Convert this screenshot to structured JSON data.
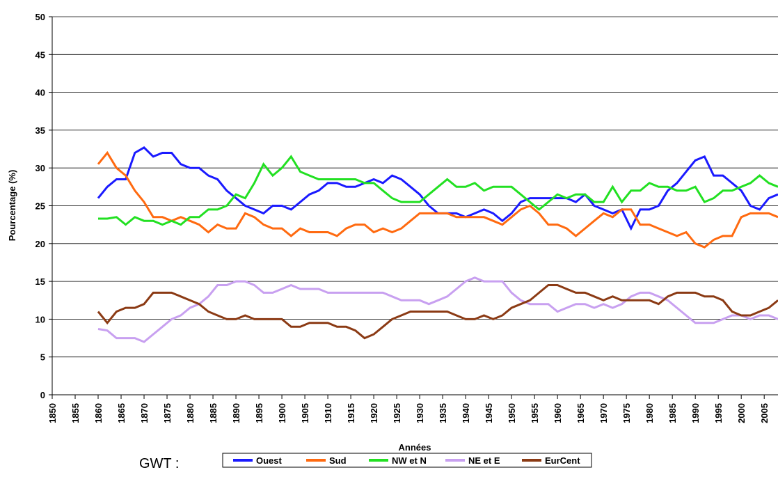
{
  "chart_data": {
    "type": "line",
    "x_label": "Années",
    "y_label": "Pourcentage (%)",
    "legend_title": "GWT :",
    "x": [
      1860,
      1862,
      1864,
      1866,
      1868,
      1870,
      1872,
      1874,
      1876,
      1878,
      1880,
      1882,
      1884,
      1886,
      1888,
      1890,
      1892,
      1894,
      1896,
      1898,
      1900,
      1902,
      1904,
      1906,
      1908,
      1910,
      1912,
      1914,
      1916,
      1918,
      1920,
      1922,
      1924,
      1926,
      1928,
      1930,
      1932,
      1934,
      1936,
      1938,
      1940,
      1942,
      1944,
      1946,
      1948,
      1950,
      1952,
      1954,
      1956,
      1958,
      1960,
      1962,
      1964,
      1966,
      1968,
      1970,
      1972,
      1974,
      1976,
      1978,
      1980,
      1982,
      1984,
      1986,
      1988,
      1990,
      1992,
      1994,
      1996,
      1998,
      2000,
      2002,
      2004,
      2006,
      2008
    ],
    "series": [
      {
        "name": "Ouest",
        "color": "#1a1aff",
        "values": [
          26,
          27.5,
          28.5,
          28.5,
          32,
          32.7,
          31.5,
          32,
          32,
          30.5,
          30,
          30,
          29,
          28.5,
          27,
          26,
          25,
          24.5,
          24,
          25,
          25,
          24.5,
          25.5,
          26.5,
          27,
          28,
          28,
          27.5,
          27.5,
          28,
          28.5,
          28,
          29,
          28.5,
          27.5,
          26.5,
          25,
          24,
          24,
          24,
          23.5,
          24,
          24.5,
          24,
          23,
          24,
          25.5,
          26,
          26,
          26,
          26,
          26,
          25.5,
          26.5,
          25,
          24.5,
          24,
          24.5,
          22,
          24.5,
          24.5,
          25,
          27,
          28,
          29.5,
          31,
          31.5,
          29,
          29,
          28,
          27,
          25,
          24.5,
          26,
          26.5
        ]
      },
      {
        "name": "Sud",
        "color": "#ff6a10",
        "values": [
          30.5,
          32,
          30,
          29,
          27,
          25.5,
          23.5,
          23.5,
          23,
          23.5,
          23,
          22.5,
          21.5,
          22.5,
          22,
          22,
          24,
          23.5,
          22.5,
          22,
          22,
          21,
          22,
          21.5,
          21.5,
          21.5,
          21,
          22,
          22.5,
          22.5,
          21.5,
          22,
          21.5,
          22,
          23,
          24,
          24,
          24,
          24,
          23.5,
          23.5,
          23.5,
          23.5,
          23,
          22.5,
          23.5,
          24.5,
          25,
          24,
          22.5,
          22.5,
          22,
          21,
          22,
          23,
          24,
          23.5,
          24.5,
          24.5,
          22.5,
          22.5,
          22,
          21.5,
          21,
          21.5,
          20,
          19.5,
          20.5,
          21,
          21,
          23.5,
          24,
          24,
          24,
          23.5
        ]
      },
      {
        "name": "NW et N",
        "color": "#22e022",
        "values": [
          23.3,
          23.3,
          23.5,
          22.5,
          23.5,
          23,
          23,
          22.5,
          23,
          22.5,
          23.5,
          23.5,
          24.5,
          24.5,
          25,
          26.5,
          26,
          28,
          30.5,
          29,
          30,
          31.5,
          29.5,
          29,
          28.5,
          28.5,
          28.5,
          28.5,
          28.5,
          28,
          28,
          27,
          26,
          25.5,
          25.5,
          25.5,
          26.5,
          27.5,
          28.5,
          27.5,
          27.5,
          28,
          27,
          27.5,
          27.5,
          27.5,
          26.5,
          25.5,
          24.5,
          25.5,
          26.5,
          26,
          26.5,
          26.5,
          25.5,
          25.5,
          27.5,
          25.5,
          27,
          27,
          28,
          27.5,
          27.5,
          27,
          27,
          27.5,
          25.5,
          26,
          27,
          27,
          27.5,
          28,
          29,
          28,
          27.5
        ]
      },
      {
        "name": "NE et E",
        "color": "#c8a0f0",
        "values": [
          8.7,
          8.5,
          7.5,
          7.5,
          7.5,
          7,
          8,
          9,
          10,
          10.5,
          11.5,
          12,
          13,
          14.5,
          14.5,
          15,
          15,
          14.5,
          13.5,
          13.5,
          14,
          14.5,
          14,
          14,
          14,
          13.5,
          13.5,
          13.5,
          13.5,
          13.5,
          13.5,
          13.5,
          13,
          12.5,
          12.5,
          12.5,
          12,
          12.5,
          13,
          14,
          15,
          15.5,
          15,
          15,
          15,
          13.5,
          12.5,
          12,
          12,
          12,
          11,
          11.5,
          12,
          12,
          11.5,
          12,
          11.5,
          12,
          13,
          13.5,
          13.5,
          13,
          12.5,
          11.5,
          10.5,
          9.5,
          9.5,
          9.5,
          10,
          10.5,
          10.5,
          10,
          10.5,
          10.5,
          10
        ]
      },
      {
        "name": "EurCent",
        "color": "#8b3a14",
        "values": [
          11,
          9.5,
          11,
          11.5,
          11.5,
          12,
          13.5,
          13.5,
          13.5,
          13,
          12.5,
          12,
          11,
          10.5,
          10,
          10,
          10.5,
          10,
          10,
          10,
          10,
          9,
          9,
          9.5,
          9.5,
          9.5,
          9,
          9,
          8.5,
          7.5,
          8,
          9,
          10,
          10.5,
          11,
          11,
          11,
          11,
          11,
          10.5,
          10,
          10,
          10.5,
          10,
          10.5,
          11.5,
          12,
          12.5,
          13.5,
          14.5,
          14.5,
          14,
          13.5,
          13.5,
          13,
          12.5,
          13,
          12.5,
          12.5,
          12.5,
          12.5,
          12,
          13,
          13.5,
          13.5,
          13.5,
          13,
          13,
          12.5,
          11,
          10.5,
          10.5,
          11,
          11.5,
          12.5
        ]
      }
    ],
    "xlim": [
      1850,
      2008
    ],
    "ylim": [
      0,
      50
    ],
    "xticks": [
      1850,
      1855,
      1860,
      1865,
      1870,
      1875,
      1880,
      1885,
      1890,
      1895,
      1900,
      1905,
      1910,
      1915,
      1920,
      1925,
      1930,
      1935,
      1940,
      1945,
      1950,
      1955,
      1960,
      1965,
      1970,
      1975,
      1980,
      1985,
      1990,
      1995,
      2000,
      2005
    ],
    "yticks": [
      0,
      5,
      10,
      15,
      20,
      25,
      30,
      35,
      40,
      45,
      50
    ],
    "grid": true
  }
}
